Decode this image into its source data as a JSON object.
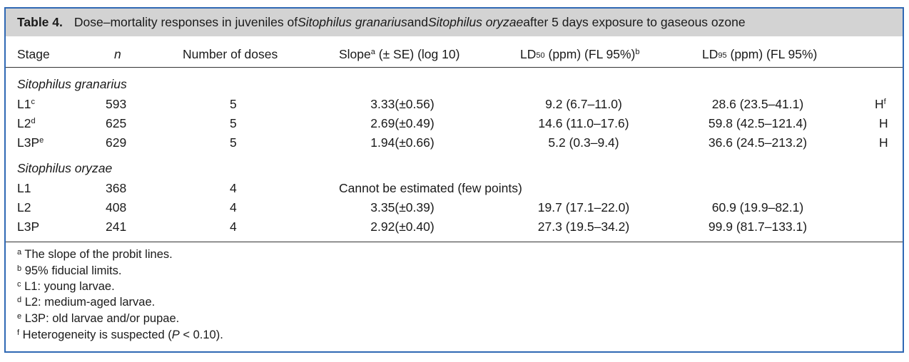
{
  "caption": {
    "label": "Table 4.",
    "text_pre": "Dose–mortality responses in juveniles of ",
    "species1": "Sitophilus granarius",
    "text_mid": " and ",
    "species2": "Sitophilus oryzae",
    "text_post": " after 5 days exposure to gaseous ozone"
  },
  "headers": {
    "stage": "Stage",
    "n": "n",
    "doses": "Number of doses",
    "slope_pre": "Slope",
    "slope_sup": "a",
    "slope_post": " (± SE) (log 10)",
    "ld50_pre": "LD",
    "ld50_sub": "50",
    "ld50_post": " (ppm) (FL 95%)",
    "ld50_sup": "b",
    "ld95_pre": "LD",
    "ld95_sub": "95",
    "ld95_post": " (ppm) (FL 95%)"
  },
  "groups": [
    {
      "name": "Sitophilus granarius",
      "rows": [
        {
          "stage": "L1",
          "stage_sup": "c",
          "n": "593",
          "doses": "5",
          "slope": "3.33(±0.56)",
          "ld50": "9.2 (6.7–11.0)",
          "ld95": "28.6 (23.5–41.1)",
          "flag": "H",
          "flag_sup": "f"
        },
        {
          "stage": "L2",
          "stage_sup": "d",
          "n": "625",
          "doses": "5",
          "slope": "2.69(±0.49)",
          "ld50": "14.6 (11.0–17.6)",
          "ld95": "59.8 (42.5–121.4)",
          "flag": "H",
          "flag_sup": ""
        },
        {
          "stage": "L3P",
          "stage_sup": "e",
          "n": "629",
          "doses": "5",
          "slope": "1.94(±0.66)",
          "ld50": "5.2 (0.3–9.4)",
          "ld95": "36.6 (24.5–213.2)",
          "flag": "H",
          "flag_sup": ""
        }
      ]
    },
    {
      "name": "Sitophilus oryzae",
      "rows": [
        {
          "stage": "L1",
          "stage_sup": "",
          "n": "368",
          "doses": "4",
          "note": "Cannot be estimated (few points)"
        },
        {
          "stage": "L2",
          "stage_sup": "",
          "n": "408",
          "doses": "4",
          "slope": "3.35(±0.39)",
          "ld50": "19.7 (17.1–22.0)",
          "ld95": "60.9 (19.9–82.1)",
          "flag": "",
          "flag_sup": ""
        },
        {
          "stage": "L3P",
          "stage_sup": "",
          "n": "241",
          "doses": "4",
          "slope": "2.92(±0.40)",
          "ld50": "27.3 (19.5–34.2)",
          "ld95": "99.9 (81.7–133.1)",
          "flag": "",
          "flag_sup": ""
        }
      ]
    }
  ],
  "footnotes": [
    {
      "mark": "a",
      "text": " The slope of the probit lines."
    },
    {
      "mark": "b",
      "text": " 95% fiducial limits."
    },
    {
      "mark": "c",
      "text": " L1: young larvae."
    },
    {
      "mark": "d",
      "text": " L2: medium-aged larvae."
    },
    {
      "mark": "e",
      "text": " L3P: old larvae and/or pupae."
    },
    {
      "mark": "f",
      "text_pre": " Heterogeneity is suspected (",
      "p": "P",
      "text_post": " < 0.10)."
    }
  ]
}
